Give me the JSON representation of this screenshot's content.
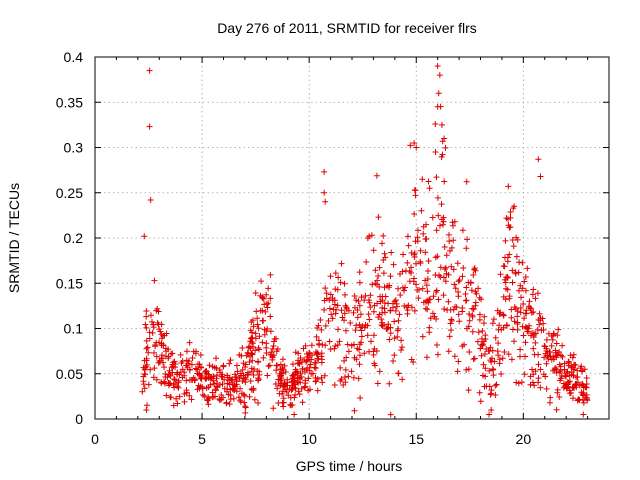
{
  "chart_data": {
    "type": "scatter",
    "title": "Day 276 of 2011, SRMTID for receiver flrs",
    "xlabel": "GPS time / hours",
    "ylabel": "SRMTID / TECUs",
    "xlim": [
      0,
      24
    ],
    "ylim": [
      0,
      0.4
    ],
    "xticks": [
      0,
      5,
      10,
      15,
      20
    ],
    "yticks": [
      0,
      0.05,
      0.1,
      0.15,
      0.2,
      0.25,
      0.3,
      0.35,
      0.4
    ],
    "xtick_labels": [
      "0",
      "5",
      "10",
      "15",
      "20"
    ],
    "ytick_labels": [
      "0",
      "0.05",
      "0.1",
      "0.15",
      "0.2",
      "0.25",
      "0.3",
      "0.35",
      "0.4"
    ],
    "grid": true,
    "marker": "+",
    "series": [
      {
        "name": "SRMTID",
        "color": "#e00000",
        "profile": [
          [
            2.2,
            0.055
          ],
          [
            2.5,
            0.075
          ],
          [
            2.8,
            0.085
          ],
          [
            3.1,
            0.07
          ],
          [
            3.5,
            0.05
          ],
          [
            4.0,
            0.045
          ],
          [
            4.5,
            0.06
          ],
          [
            5.0,
            0.045
          ],
          [
            5.5,
            0.035
          ],
          [
            6.0,
            0.04
          ],
          [
            6.5,
            0.035
          ],
          [
            7.0,
            0.05
          ],
          [
            7.5,
            0.08
          ],
          [
            7.9,
            0.11
          ],
          [
            8.3,
            0.07
          ],
          [
            8.8,
            0.04
          ],
          [
            9.3,
            0.04
          ],
          [
            9.8,
            0.055
          ],
          [
            10.3,
            0.07
          ],
          [
            10.8,
            0.1
          ],
          [
            11.2,
            0.12
          ],
          [
            11.7,
            0.085
          ],
          [
            12.2,
            0.09
          ],
          [
            12.7,
            0.13
          ],
          [
            13.2,
            0.15
          ],
          [
            13.7,
            0.12
          ],
          [
            14.2,
            0.1
          ],
          [
            14.5,
            0.15
          ],
          [
            14.8,
            0.19
          ],
          [
            15.2,
            0.16
          ],
          [
            15.7,
            0.15
          ],
          [
            16.0,
            0.2
          ],
          [
            16.3,
            0.21
          ],
          [
            16.6,
            0.17
          ],
          [
            17.0,
            0.13
          ],
          [
            17.5,
            0.14
          ],
          [
            18.0,
            0.09
          ],
          [
            18.4,
            0.05
          ],
          [
            18.8,
            0.09
          ],
          [
            19.2,
            0.14
          ],
          [
            19.6,
            0.16
          ],
          [
            20.0,
            0.11
          ],
          [
            20.5,
            0.09
          ],
          [
            21.0,
            0.08
          ],
          [
            21.5,
            0.06
          ],
          [
            22.0,
            0.05
          ],
          [
            22.5,
            0.04
          ],
          [
            23.0,
            0.03
          ]
        ],
        "outliers": [
          [
            2.55,
            0.385
          ],
          [
            2.55,
            0.323
          ],
          [
            2.6,
            0.242
          ],
          [
            2.3,
            0.202
          ],
          [
            10.7,
            0.273
          ],
          [
            10.7,
            0.25
          ],
          [
            10.75,
            0.24
          ],
          [
            14.9,
            0.305
          ],
          [
            15.0,
            0.3
          ],
          [
            16.0,
            0.39
          ],
          [
            16.1,
            0.38
          ],
          [
            16.05,
            0.36
          ],
          [
            16.0,
            0.345
          ],
          [
            16.2,
            0.325
          ],
          [
            16.3,
            0.31
          ],
          [
            15.9,
            0.295
          ],
          [
            19.3,
            0.257
          ],
          [
            20.7,
            0.287
          ],
          [
            20.8,
            0.268
          ],
          [
            18.4,
            0.005
          ],
          [
            18.5,
            0.01
          ],
          [
            9.3,
            0.005
          ],
          [
            22.8,
            0.005
          ],
          [
            2.4,
            0.01
          ]
        ]
      }
    ]
  }
}
